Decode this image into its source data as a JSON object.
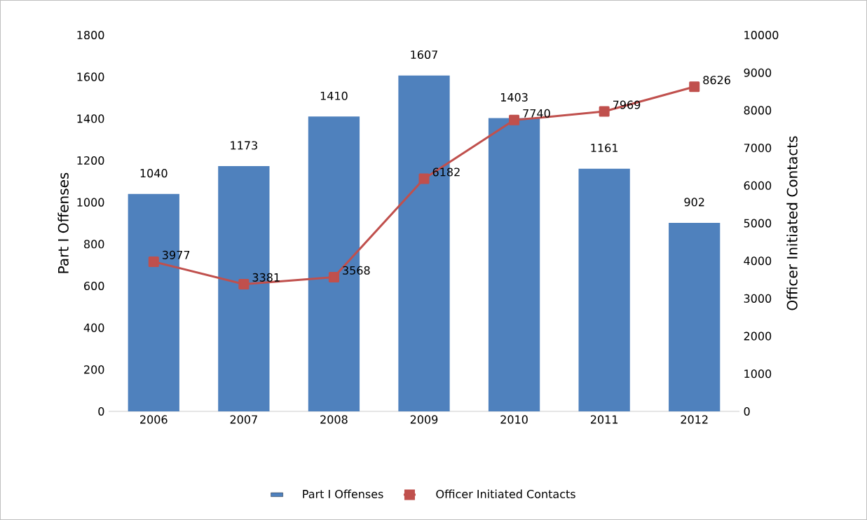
{
  "chart_data": {
    "type": "bar",
    "categories": [
      "2006",
      "2007",
      "2008",
      "2009",
      "2010",
      "2011",
      "2012"
    ],
    "series": [
      {
        "name": "Part I Offenses",
        "color": "#4f81bd",
        "values": [
          1040,
          1173,
          1410,
          1607,
          1403,
          1161,
          902
        ]
      },
      {
        "name": "Officer Initiated Contacts",
        "type": "line",
        "axis": "y2",
        "color": "#c0504d",
        "values": [
          3977,
          3381,
          3568,
          6182,
          7740,
          7969,
          8626
        ]
      }
    ],
    "ylabel": "Part I Offenses",
    "y2label": "Officer Initiated Contacts",
    "ylim": [
      0,
      1800
    ],
    "yticks": [
      0,
      200,
      400,
      600,
      800,
      1000,
      1200,
      1400,
      1600,
      1800
    ],
    "y2lim": [
      0,
      10000
    ],
    "y2ticks": [
      0,
      1000,
      2000,
      3000,
      4000,
      5000,
      6000,
      7000,
      8000,
      9000,
      10000
    ],
    "data_labels": true,
    "legend": "bottom",
    "marker": "square",
    "line_style": "solid"
  }
}
